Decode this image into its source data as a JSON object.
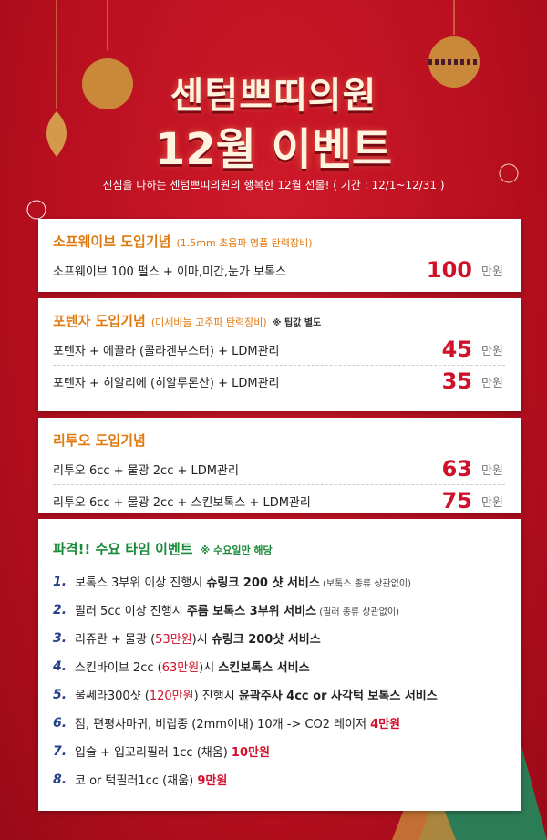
{
  "header": {
    "title_line1": "센텀쁘띠의원",
    "title_line2": "12월 이벤트",
    "subtitle": "진심을 다하는 센텀쁘띠의원의 행복한 12월 선물! ( 기간 : 12/1~12/31 )"
  },
  "sections": [
    {
      "title": "소프웨이브 도입기념",
      "note": "(1.5mm 초음파 명품 탄력장비)",
      "items": [
        {
          "name": "소프웨이브 100 펄스 + 이마,미간,눈가 보톡스",
          "price": 100,
          "unit": "만원"
        }
      ]
    },
    {
      "title": "포텐자 도입기념",
      "note": "(미세바늘 고주파 탄력장비)",
      "extra": "※ 팁값 별도",
      "items": [
        {
          "name": "포텐자 + 에끌라 (콜라겐부스터) + LDM관리",
          "price": 45,
          "unit": "만원"
        },
        {
          "name": "포텐자 + 히알리에 (히알루론산) + LDM관리",
          "price": 35,
          "unit": "만원"
        }
      ]
    },
    {
      "title": "리투오 도입기념",
      "items": [
        {
          "name": "리투오 6cc + 물광 2cc + LDM관리",
          "price": 63,
          "unit": "만원"
        },
        {
          "name": "리투오 6cc + 물광 2cc + 스킨보톡스 + LDM관리",
          "price": 75,
          "unit": "만원"
        }
      ]
    }
  ],
  "event": {
    "title": "파격!! 수요 타임 이벤트",
    "note": "※ 수요일만 해당",
    "items": [
      {
        "number": "1.",
        "segments": [
          {
            "text": "보톡스 3부위 이상 진행시 ",
            "style": "plain"
          },
          {
            "text": "슈링크 200 샷 서비스",
            "style": "bold"
          },
          {
            "text": " (보톡스 종류 상관없이)",
            "style": "small"
          }
        ]
      },
      {
        "number": "2.",
        "segments": [
          {
            "text": "필러 5cc 이상 진행시 ",
            "style": "plain"
          },
          {
            "text": "주름 보톡스 3부위 서비스",
            "style": "bold"
          },
          {
            "text": " (필러 종류 상관없이)",
            "style": "small"
          }
        ]
      },
      {
        "number": "3.",
        "segments": [
          {
            "text": "리쥬란 + 물광 (",
            "style": "plain"
          },
          {
            "text": "53만원",
            "style": "red"
          },
          {
            "text": ")시 ",
            "style": "plain"
          },
          {
            "text": "슈링크 200샷 서비스",
            "style": "bold"
          }
        ]
      },
      {
        "number": "4.",
        "segments": [
          {
            "text": "스킨바이브 2cc (",
            "style": "plain"
          },
          {
            "text": "63만원",
            "style": "red"
          },
          {
            "text": ")시 ",
            "style": "plain"
          },
          {
            "text": "스킨보톡스 서비스",
            "style": "bold"
          }
        ]
      },
      {
        "number": "5.",
        "segments": [
          {
            "text": "울쎄라300샷 (",
            "style": "plain"
          },
          {
            "text": "120만원",
            "style": "red"
          },
          {
            "text": ") 진행시 ",
            "style": "plain"
          },
          {
            "text": "윤곽주사 4cc or 사각턱 보톡스 서비스",
            "style": "bold"
          }
        ]
      },
      {
        "number": "6.",
        "segments": [
          {
            "text": "점, 편평사마귀, 비립종 (2mm이내) 10개 -> CO2 레이저 ",
            "style": "plain"
          },
          {
            "text": "4만원",
            "style": "redbold"
          }
        ]
      },
      {
        "number": "7.",
        "segments": [
          {
            "text": "입술 + 입꼬리필러 1cc (채움) ",
            "style": "plain"
          },
          {
            "text": "10만원",
            "style": "redbold"
          }
        ]
      },
      {
        "number": "8.",
        "segments": [
          {
            "text": "코 or 턱필러1cc (채움) ",
            "style": "plain"
          },
          {
            "text": "9만원",
            "style": "redbold"
          }
        ]
      }
    ]
  }
}
